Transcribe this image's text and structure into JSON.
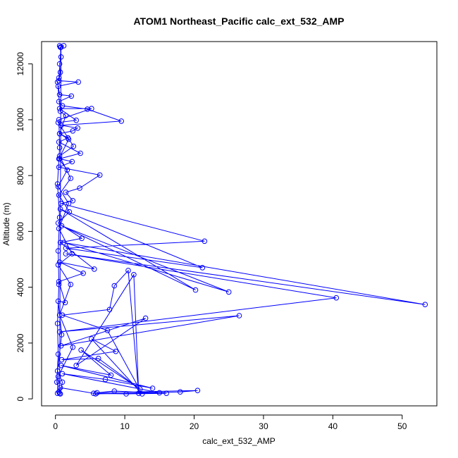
{
  "chart_data": {
    "type": "line",
    "title": "ATOM1 Northeast_Pacific calc_ext_532_AMP",
    "xlabel": "calc_ext_532_AMP",
    "ylabel": "Altitude (m)",
    "xlim": [
      -2,
      55
    ],
    "ylim": [
      -250,
      12800
    ],
    "x_ticks": [
      0,
      10,
      20,
      30,
      40,
      50
    ],
    "y_ticks": [
      0,
      2000,
      4000,
      6000,
      8000,
      10000,
      12000
    ],
    "grid": false,
    "series_color": "#0000ff",
    "series": [
      {
        "marker": "open-circle",
        "points": [
          [
            0.6,
            12650
          ],
          [
            1.2,
            12650
          ],
          [
            0.7,
            12600
          ],
          [
            0.8,
            12250
          ],
          [
            0.6,
            12000
          ],
          [
            0.7,
            11700
          ],
          [
            0.5,
            11400
          ],
          [
            3.3,
            11350
          ],
          [
            0.4,
            11200
          ],
          [
            0.6,
            10900
          ],
          [
            2.3,
            10850
          ],
          [
            0.5,
            10650
          ],
          [
            1.0,
            10500
          ],
          [
            4.6,
            10380
          ],
          [
            9.5,
            9950
          ],
          [
            0.8,
            9800
          ],
          [
            3.2,
            9700
          ],
          [
            2.5,
            9600
          ],
          [
            0.6,
            9500
          ],
          [
            1.8,
            9350
          ],
          [
            0.5,
            9200
          ],
          [
            3.6,
            8800
          ],
          [
            0.6,
            8600
          ],
          [
            2.4,
            8500
          ],
          [
            0.5,
            8300
          ],
          [
            6.4,
            8020
          ],
          [
            3.5,
            7550
          ],
          [
            1.5,
            7400
          ],
          [
            2.5,
            7100
          ],
          [
            0.8,
            7000
          ],
          [
            21.5,
            5650
          ],
          [
            1.5,
            5400
          ],
          [
            21.2,
            4700
          ],
          [
            0.7,
            6800
          ],
          [
            20.2,
            3900
          ],
          [
            0.9,
            6200
          ],
          [
            25.0,
            3830
          ],
          [
            1.2,
            5600
          ],
          [
            53.3,
            3380
          ],
          [
            1.5,
            5200
          ],
          [
            40.5,
            3620
          ],
          [
            0.6,
            2400
          ],
          [
            26.5,
            2980
          ],
          [
            0.8,
            1900
          ],
          [
            13.0,
            2890
          ],
          [
            3.0,
            1200
          ],
          [
            11.3,
            4450
          ],
          [
            12.0,
            200
          ],
          [
            10.5,
            4600
          ],
          [
            8.5,
            4050
          ],
          [
            7.8,
            3200
          ],
          [
            1.0,
            3000
          ],
          [
            7.5,
            2450
          ],
          [
            12.5,
            180
          ],
          [
            5.2,
            2150
          ],
          [
            8.7,
            1700
          ],
          [
            0.9,
            1400
          ],
          [
            6.2,
            1450
          ],
          [
            12.2,
            350
          ],
          [
            3.7,
            1750
          ],
          [
            8.0,
            850
          ],
          [
            0.8,
            1200
          ],
          [
            14.0,
            380
          ],
          [
            7.2,
            700
          ],
          [
            1.0,
            900
          ],
          [
            15.0,
            220
          ],
          [
            5.8,
            180
          ],
          [
            18.0,
            250
          ],
          [
            20.5,
            300
          ],
          [
            6.0,
            220
          ],
          [
            8.5,
            280
          ],
          [
            16.0,
            200
          ],
          [
            10.2,
            180
          ],
          [
            5.5,
            200
          ],
          [
            0.7,
            400
          ],
          [
            0.5,
            250
          ],
          [
            0.7,
            180
          ],
          [
            1.0,
            600
          ],
          [
            0.3,
            1000
          ],
          [
            0.9,
            2300
          ],
          [
            0.4,
            3500
          ],
          [
            1.4,
            3450
          ],
          [
            0.5,
            4200
          ],
          [
            4.0,
            4500
          ],
          [
            0.6,
            4900
          ],
          [
            5.6,
            4650
          ],
          [
            0.7,
            5600
          ],
          [
            3.8,
            5750
          ],
          [
            0.4,
            6300
          ],
          [
            2.0,
            6700
          ],
          [
            0.5,
            7300
          ],
          [
            2.2,
            7900
          ],
          [
            0.6,
            8700
          ],
          [
            2.6,
            9050
          ],
          [
            0.4,
            9900
          ],
          [
            3.0,
            9980
          ],
          [
            0.6,
            10400
          ],
          [
            5.2,
            10400
          ],
          [
            0.5,
            10000
          ],
          [
            0.6,
            9000
          ],
          [
            0.3,
            7700
          ],
          [
            0.6,
            6500
          ],
          [
            0.4,
            5300
          ],
          [
            0.5,
            4100
          ],
          [
            0.3,
            2700
          ],
          [
            0.4,
            1600
          ],
          [
            0.2,
            600
          ],
          [
            0.6,
            200
          ],
          [
            0.8,
            12600
          ],
          [
            0.5,
            11500
          ],
          [
            0.3,
            11350
          ],
          [
            0.7,
            10300
          ],
          [
            1.5,
            10150
          ],
          [
            0.6,
            9500
          ],
          [
            1.9,
            9300
          ],
          [
            0.5,
            8600
          ],
          [
            1.7,
            8200
          ],
          [
            0.4,
            7600
          ],
          [
            1.9,
            7000
          ],
          [
            0.5,
            6100
          ],
          [
            2.4,
            5200
          ],
          [
            0.4,
            4800
          ],
          [
            2.2,
            4100
          ],
          [
            0.6,
            3000
          ],
          [
            2.5,
            1850
          ],
          [
            0.4,
            800
          ],
          [
            0.3,
            200
          ]
        ]
      }
    ]
  }
}
